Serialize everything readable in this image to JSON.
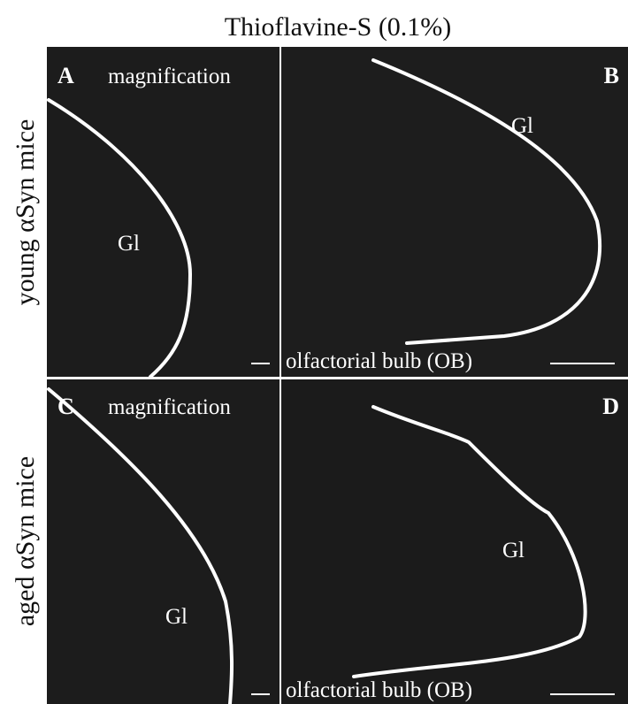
{
  "title": "Thioflavine-S (0.1%)",
  "row_labels": [
    "young αSyn mice",
    "aged αSyn mice"
  ],
  "panels": [
    {
      "letter": "A",
      "label": "magnification",
      "region": "Gl"
    },
    {
      "letter": "B",
      "region": "Gl",
      "caption": "olfactorial bulb (OB)"
    },
    {
      "letter": "C",
      "label": "magnification",
      "region": "Gl"
    },
    {
      "letter": "D",
      "region": "Gl",
      "caption": "olfactorial bulb (OB)"
    }
  ]
}
